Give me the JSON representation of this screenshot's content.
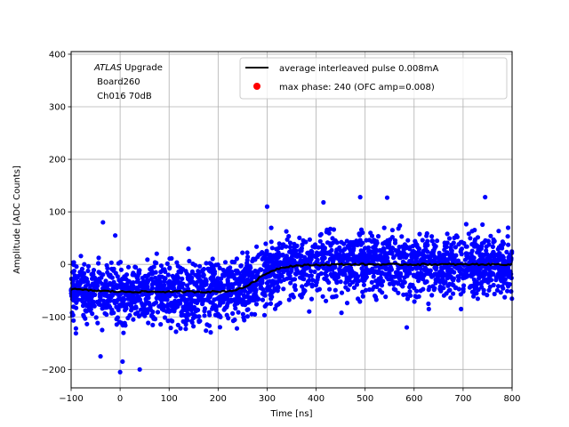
{
  "chart_data": {
    "type": "scatter",
    "xlabel": "Time [ns]",
    "ylabel": "Amplitude [ADC Counts]",
    "xlim": [
      -100,
      800
    ],
    "ylim": [
      -235,
      405
    ],
    "xticks": [
      -100,
      0,
      100,
      200,
      300,
      400,
      500,
      600,
      700,
      800
    ],
    "yticks": [
      -200,
      -100,
      0,
      100,
      200,
      300,
      400
    ],
    "grid": true,
    "legend_placement": "top-right",
    "annotation": {
      "italic": "ATLAS",
      "line1_rest": " Upgrade",
      "line2": " Board260",
      "line3": " Ch016 70dB"
    },
    "series": [
      {
        "name": "average interleaved pulse 0.008mA",
        "kind": "line",
        "color": "#000000",
        "x": [
          -100,
          -50,
          0,
          50,
          100,
          150,
          200,
          230,
          250,
          270,
          290,
          310,
          330,
          350,
          370,
          400,
          450,
          500,
          550,
          600,
          650,
          700,
          750,
          800
        ],
        "y": [
          -47,
          -50,
          -52,
          -52,
          -52,
          -52,
          -52,
          -50,
          -45,
          -35,
          -22,
          -12,
          -6,
          -3,
          -2,
          -1,
          0,
          0,
          0,
          0,
          0,
          0,
          0,
          0
        ]
      },
      {
        "name": "max phase: 240 (OFC amp=0.008)",
        "kind": "scatter",
        "color": "#ff0000",
        "x": [
          240
        ],
        "y": [
          null
        ]
      },
      {
        "name": "",
        "kind": "scatter",
        "color": "#0000ff",
        "x_range": [
          -100,
          800
        ],
        "spread": 40,
        "extremes_y": [
          -205,
          -200,
          130,
          128
        ]
      }
    ]
  }
}
